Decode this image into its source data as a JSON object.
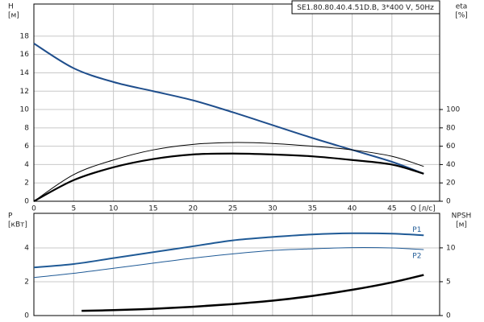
{
  "chart_data": [
    {
      "type": "line",
      "title": "SE1.80.80.40.4.51D.B, 3*400 V, 50Hz",
      "y_label": [
        "H",
        "[м]"
      ],
      "y2_label": [
        "eta",
        "[%]"
      ],
      "x_label": "Q [л/с]",
      "xlim": [
        0,
        51
      ],
      "xticks": [
        0,
        5,
        10,
        15,
        20,
        25,
        30,
        35,
        40,
        45
      ],
      "show_xtick_labels": true,
      "ylim": [
        0,
        21.5
      ],
      "yticks": [
        0,
        2,
        4,
        6,
        8,
        10,
        12,
        14,
        16,
        18
      ],
      "y2lim": [
        0,
        215
      ],
      "y2ticks": [
        0,
        20,
        40,
        60,
        80,
        100
      ],
      "grid": true,
      "series": [
        {
          "color": "#1f4e8c",
          "linewidth": 2,
          "x": [
            0,
            5,
            10,
            15,
            20,
            25,
            30,
            35,
            40,
            45,
            49
          ],
          "values": [
            17.2,
            14.5,
            13,
            12,
            11,
            9.7,
            8.3,
            6.9,
            5.6,
            4.3,
            3.0
          ]
        },
        {
          "color": "#000000",
          "linewidth": 1,
          "axis": "y2",
          "x": [
            0,
            5,
            10,
            15,
            20,
            25,
            30,
            35,
            40,
            45,
            49
          ],
          "values": [
            0,
            29,
            45,
            56,
            62,
            64,
            63,
            60,
            56,
            49,
            38
          ]
        },
        {
          "color": "#000000",
          "linewidth": 2.2,
          "axis": "y2",
          "x": [
            0,
            5,
            10,
            15,
            20,
            25,
            30,
            35,
            40,
            45,
            49
          ],
          "values": [
            0,
            23,
            37,
            46,
            51,
            52,
            51,
            49,
            45,
            40,
            30
          ]
        }
      ]
    },
    {
      "type": "line",
      "y_label": [
        "P",
        "[кВт]"
      ],
      "y2_label": [
        "NPSH",
        "[м]"
      ],
      "xlim": [
        0,
        51
      ],
      "xticks": [
        0,
        5,
        10,
        15,
        20,
        25,
        30,
        35,
        40,
        45
      ],
      "show_xtick_labels": false,
      "ylim": [
        0,
        6.05
      ],
      "yticks": [
        0,
        2,
        4
      ],
      "y2lim": [
        0,
        15.1
      ],
      "y2ticks": [
        0,
        5,
        10
      ],
      "grid": true,
      "series": [
        {
          "name": "P1",
          "color": "#1f5a96",
          "linewidth": 2,
          "x": [
            0,
            5,
            10,
            15,
            20,
            25,
            30,
            35,
            40,
            45,
            49
          ],
          "values": [
            2.85,
            3.05,
            3.4,
            3.75,
            4.1,
            4.45,
            4.65,
            4.8,
            4.87,
            4.85,
            4.75
          ]
        },
        {
          "name": "P2",
          "color": "#1f5a96",
          "linewidth": 1,
          "x": [
            0,
            5,
            10,
            15,
            20,
            25,
            30,
            35,
            40,
            45,
            49
          ],
          "values": [
            2.25,
            2.5,
            2.8,
            3.1,
            3.4,
            3.65,
            3.85,
            3.95,
            4.02,
            4.0,
            3.9
          ]
        },
        {
          "color": "#000000",
          "linewidth": 2.5,
          "axis": "y2",
          "x": [
            6,
            10,
            15,
            20,
            25,
            30,
            35,
            40,
            45,
            49
          ],
          "values": [
            0.7,
            0.8,
            1.0,
            1.3,
            1.7,
            2.2,
            2.9,
            3.8,
            4.9,
            6.0
          ]
        }
      ]
    }
  ]
}
